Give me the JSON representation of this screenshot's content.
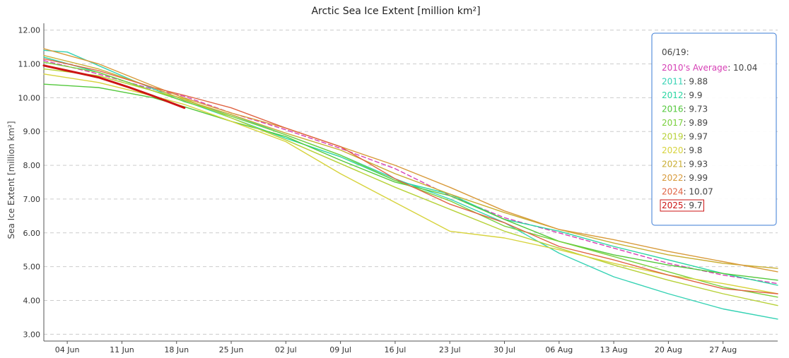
{
  "chart_data": {
    "type": "line",
    "title": "Arctic Sea Ice Extent [million km²]",
    "ylabel": "Sea Ice Extent [million km²]",
    "xlabel": "",
    "ylim": [
      2.8,
      12.2
    ],
    "y_ticks": [
      "3.00",
      "4.00",
      "5.00",
      "6.00",
      "7.00",
      "8.00",
      "9.00",
      "10.00",
      "11.00",
      "12.00"
    ],
    "x_axis": {
      "start_date": "06/01",
      "end_date": "09/03",
      "tick_dates": [
        "06/04",
        "06/11",
        "06/18",
        "06/25",
        "07/02",
        "07/09",
        "07/16",
        "07/23",
        "07/30",
        "08/06",
        "08/13",
        "08/20",
        "08/27"
      ],
      "tick_labels": [
        "04 Jun",
        "11 Jun",
        "18 Jun",
        "25 Jun",
        "02 Jul",
        "09 Jul",
        "16 Jul",
        "23 Jul",
        "30 Jul",
        "06 Aug",
        "13 Aug",
        "20 Aug",
        "27 Aug"
      ]
    },
    "grid": "horizontal dashed",
    "tooltip": {
      "date": "06/19:",
      "entries": [
        {
          "name": "2010's Average",
          "value": "10.04"
        },
        {
          "name": "2011",
          "value": "9.88"
        },
        {
          "name": "2012",
          "value": "9.9"
        },
        {
          "name": "2016",
          "value": "9.73"
        },
        {
          "name": "2017",
          "value": "9.89"
        },
        {
          "name": "2019",
          "value": "9.97"
        },
        {
          "name": "2020",
          "value": "9.8"
        },
        {
          "name": "2021",
          "value": "9.93"
        },
        {
          "name": "2022",
          "value": "9.99"
        },
        {
          "name": "2024",
          "value": "10.07"
        },
        {
          "name": "2025",
          "value": "9.7"
        }
      ]
    },
    "series": [
      {
        "name": "2010's Average",
        "color": "#d63fb5",
        "style": "dashed",
        "points": [
          [
            "06/01",
            11.1
          ],
          [
            "06/08",
            10.7
          ],
          [
            "06/15",
            10.25
          ],
          [
            "06/19",
            10.04
          ],
          [
            "06/25",
            9.55
          ],
          [
            "07/02",
            9.05
          ],
          [
            "07/09",
            8.5
          ],
          [
            "07/16",
            7.9
          ],
          [
            "07/23",
            7.1
          ],
          [
            "07/30",
            6.45
          ],
          [
            "08/06",
            6.0
          ],
          [
            "08/13",
            5.55
          ],
          [
            "08/20",
            5.1
          ],
          [
            "08/27",
            4.75
          ],
          [
            "09/03",
            4.5
          ]
        ]
      },
      {
        "name": "2011",
        "color": "#35d2b4",
        "points": [
          [
            "06/01",
            11.4
          ],
          [
            "06/04",
            11.35
          ],
          [
            "06/08",
            10.95
          ],
          [
            "06/12",
            10.55
          ],
          [
            "06/19",
            9.88
          ],
          [
            "06/25",
            9.5
          ],
          [
            "07/02",
            8.9
          ],
          [
            "07/09",
            8.3
          ],
          [
            "07/16",
            7.6
          ],
          [
            "07/23",
            7.0
          ],
          [
            "07/30",
            6.3
          ],
          [
            "08/06",
            5.4
          ],
          [
            "08/13",
            4.7
          ],
          [
            "08/20",
            4.2
          ],
          [
            "08/27",
            3.75
          ],
          [
            "09/03",
            3.45
          ]
        ]
      },
      {
        "name": "2012",
        "color": "#2ad6a2",
        "points": [
          [
            "06/01",
            11.2
          ],
          [
            "06/08",
            10.75
          ],
          [
            "06/15",
            10.2
          ],
          [
            "06/19",
            9.9
          ],
          [
            "06/25",
            9.4
          ],
          [
            "07/02",
            8.8
          ],
          [
            "07/09",
            8.25
          ],
          [
            "07/16",
            7.55
          ],
          [
            "07/23",
            7.15
          ],
          [
            "07/30",
            6.4
          ],
          [
            "08/06",
            6.05
          ],
          [
            "08/13",
            5.6
          ],
          [
            "08/20",
            5.2
          ],
          [
            "08/27",
            4.8
          ],
          [
            "09/03",
            4.45
          ]
        ]
      },
      {
        "name": "2016",
        "color": "#53c83c",
        "points": [
          [
            "06/01",
            10.4
          ],
          [
            "06/08",
            10.3
          ],
          [
            "06/15",
            10.0
          ],
          [
            "06/19",
            9.73
          ],
          [
            "06/25",
            9.3
          ],
          [
            "07/02",
            8.85
          ],
          [
            "07/09",
            8.15
          ],
          [
            "07/16",
            7.5
          ],
          [
            "07/23",
            7.1
          ],
          [
            "07/30",
            6.4
          ],
          [
            "08/06",
            5.75
          ],
          [
            "08/13",
            5.35
          ],
          [
            "08/20",
            5.05
          ],
          [
            "08/27",
            4.8
          ],
          [
            "09/03",
            4.6
          ]
        ]
      },
      {
        "name": "2017",
        "color": "#79d03c",
        "points": [
          [
            "06/01",
            11.05
          ],
          [
            "06/08",
            10.75
          ],
          [
            "06/15",
            10.2
          ],
          [
            "06/19",
            9.89
          ],
          [
            "06/25",
            9.45
          ],
          [
            "07/02",
            8.9
          ],
          [
            "07/09",
            8.3
          ],
          [
            "07/16",
            7.55
          ],
          [
            "07/23",
            6.95
          ],
          [
            "07/30",
            6.2
          ],
          [
            "08/06",
            5.75
          ],
          [
            "08/13",
            5.3
          ],
          [
            "08/20",
            4.85
          ],
          [
            "08/27",
            4.4
          ],
          [
            "09/03",
            4.1
          ]
        ]
      },
      {
        "name": "2019",
        "color": "#b7d137",
        "points": [
          [
            "06/01",
            10.85
          ],
          [
            "06/08",
            10.65
          ],
          [
            "06/15",
            10.2
          ],
          [
            "06/19",
            9.97
          ],
          [
            "06/25",
            9.4
          ],
          [
            "07/02",
            8.75
          ],
          [
            "07/09",
            8.05
          ],
          [
            "07/16",
            7.35
          ],
          [
            "07/23",
            6.7
          ],
          [
            "07/30",
            6.05
          ],
          [
            "08/06",
            5.55
          ],
          [
            "08/13",
            5.05
          ],
          [
            "08/20",
            4.6
          ],
          [
            "08/27",
            4.2
          ],
          [
            "09/03",
            3.85
          ]
        ]
      },
      {
        "name": "2020",
        "color": "#d7d33c",
        "points": [
          [
            "06/01",
            10.7
          ],
          [
            "06/08",
            10.45
          ],
          [
            "06/15",
            10.05
          ],
          [
            "06/19",
            9.8
          ],
          [
            "06/25",
            9.3
          ],
          [
            "07/02",
            8.7
          ],
          [
            "07/09",
            7.75
          ],
          [
            "07/16",
            6.9
          ],
          [
            "07/23",
            6.05
          ],
          [
            "07/30",
            5.85
          ],
          [
            "08/06",
            5.5
          ],
          [
            "08/13",
            5.1
          ],
          [
            "08/20",
            4.75
          ],
          [
            "08/27",
            4.5
          ],
          [
            "09/03",
            4.2
          ]
        ]
      },
      {
        "name": "2021",
        "color": "#c9ae32",
        "points": [
          [
            "06/01",
            11.25
          ],
          [
            "06/08",
            10.85
          ],
          [
            "06/15",
            10.3
          ],
          [
            "06/19",
            9.93
          ],
          [
            "06/25",
            9.5
          ],
          [
            "07/02",
            8.95
          ],
          [
            "07/09",
            8.45
          ],
          [
            "07/16",
            7.75
          ],
          [
            "07/23",
            7.15
          ],
          [
            "07/30",
            6.6
          ],
          [
            "08/06",
            6.1
          ],
          [
            "08/13",
            5.7
          ],
          [
            "08/20",
            5.35
          ],
          [
            "08/27",
            5.1
          ],
          [
            "09/03",
            4.95
          ]
        ]
      },
      {
        "name": "2022",
        "color": "#d89a3a",
        "points": [
          [
            "06/01",
            11.45
          ],
          [
            "06/08",
            11.0
          ],
          [
            "06/15",
            10.35
          ],
          [
            "06/19",
            9.99
          ],
          [
            "06/25",
            9.55
          ],
          [
            "07/02",
            9.1
          ],
          [
            "07/09",
            8.55
          ],
          [
            "07/16",
            8.0
          ],
          [
            "07/23",
            7.35
          ],
          [
            "07/30",
            6.65
          ],
          [
            "08/06",
            6.1
          ],
          [
            "08/13",
            5.8
          ],
          [
            "08/20",
            5.45
          ],
          [
            "08/27",
            5.15
          ],
          [
            "09/03",
            4.85
          ]
        ]
      },
      {
        "name": "2024",
        "color": "#e06343",
        "points": [
          [
            "06/01",
            11.15
          ],
          [
            "06/08",
            10.8
          ],
          [
            "06/15",
            10.3
          ],
          [
            "06/19",
            10.07
          ],
          [
            "06/25",
            9.7
          ],
          [
            "07/02",
            9.1
          ],
          [
            "07/09",
            8.55
          ],
          [
            "07/16",
            7.6
          ],
          [
            "07/23",
            6.85
          ],
          [
            "07/30",
            6.3
          ],
          [
            "08/06",
            5.6
          ],
          [
            "08/13",
            5.2
          ],
          [
            "08/20",
            4.75
          ],
          [
            "08/27",
            4.35
          ],
          [
            "09/03",
            4.2
          ]
        ]
      },
      {
        "name": "2025",
        "color": "#cc1414",
        "style": "bold",
        "points": [
          [
            "06/01",
            10.95
          ],
          [
            "06/04",
            10.8
          ],
          [
            "06/08",
            10.6
          ],
          [
            "06/12",
            10.3
          ],
          [
            "06/15",
            10.05
          ],
          [
            "06/19",
            9.7
          ]
        ]
      }
    ]
  }
}
